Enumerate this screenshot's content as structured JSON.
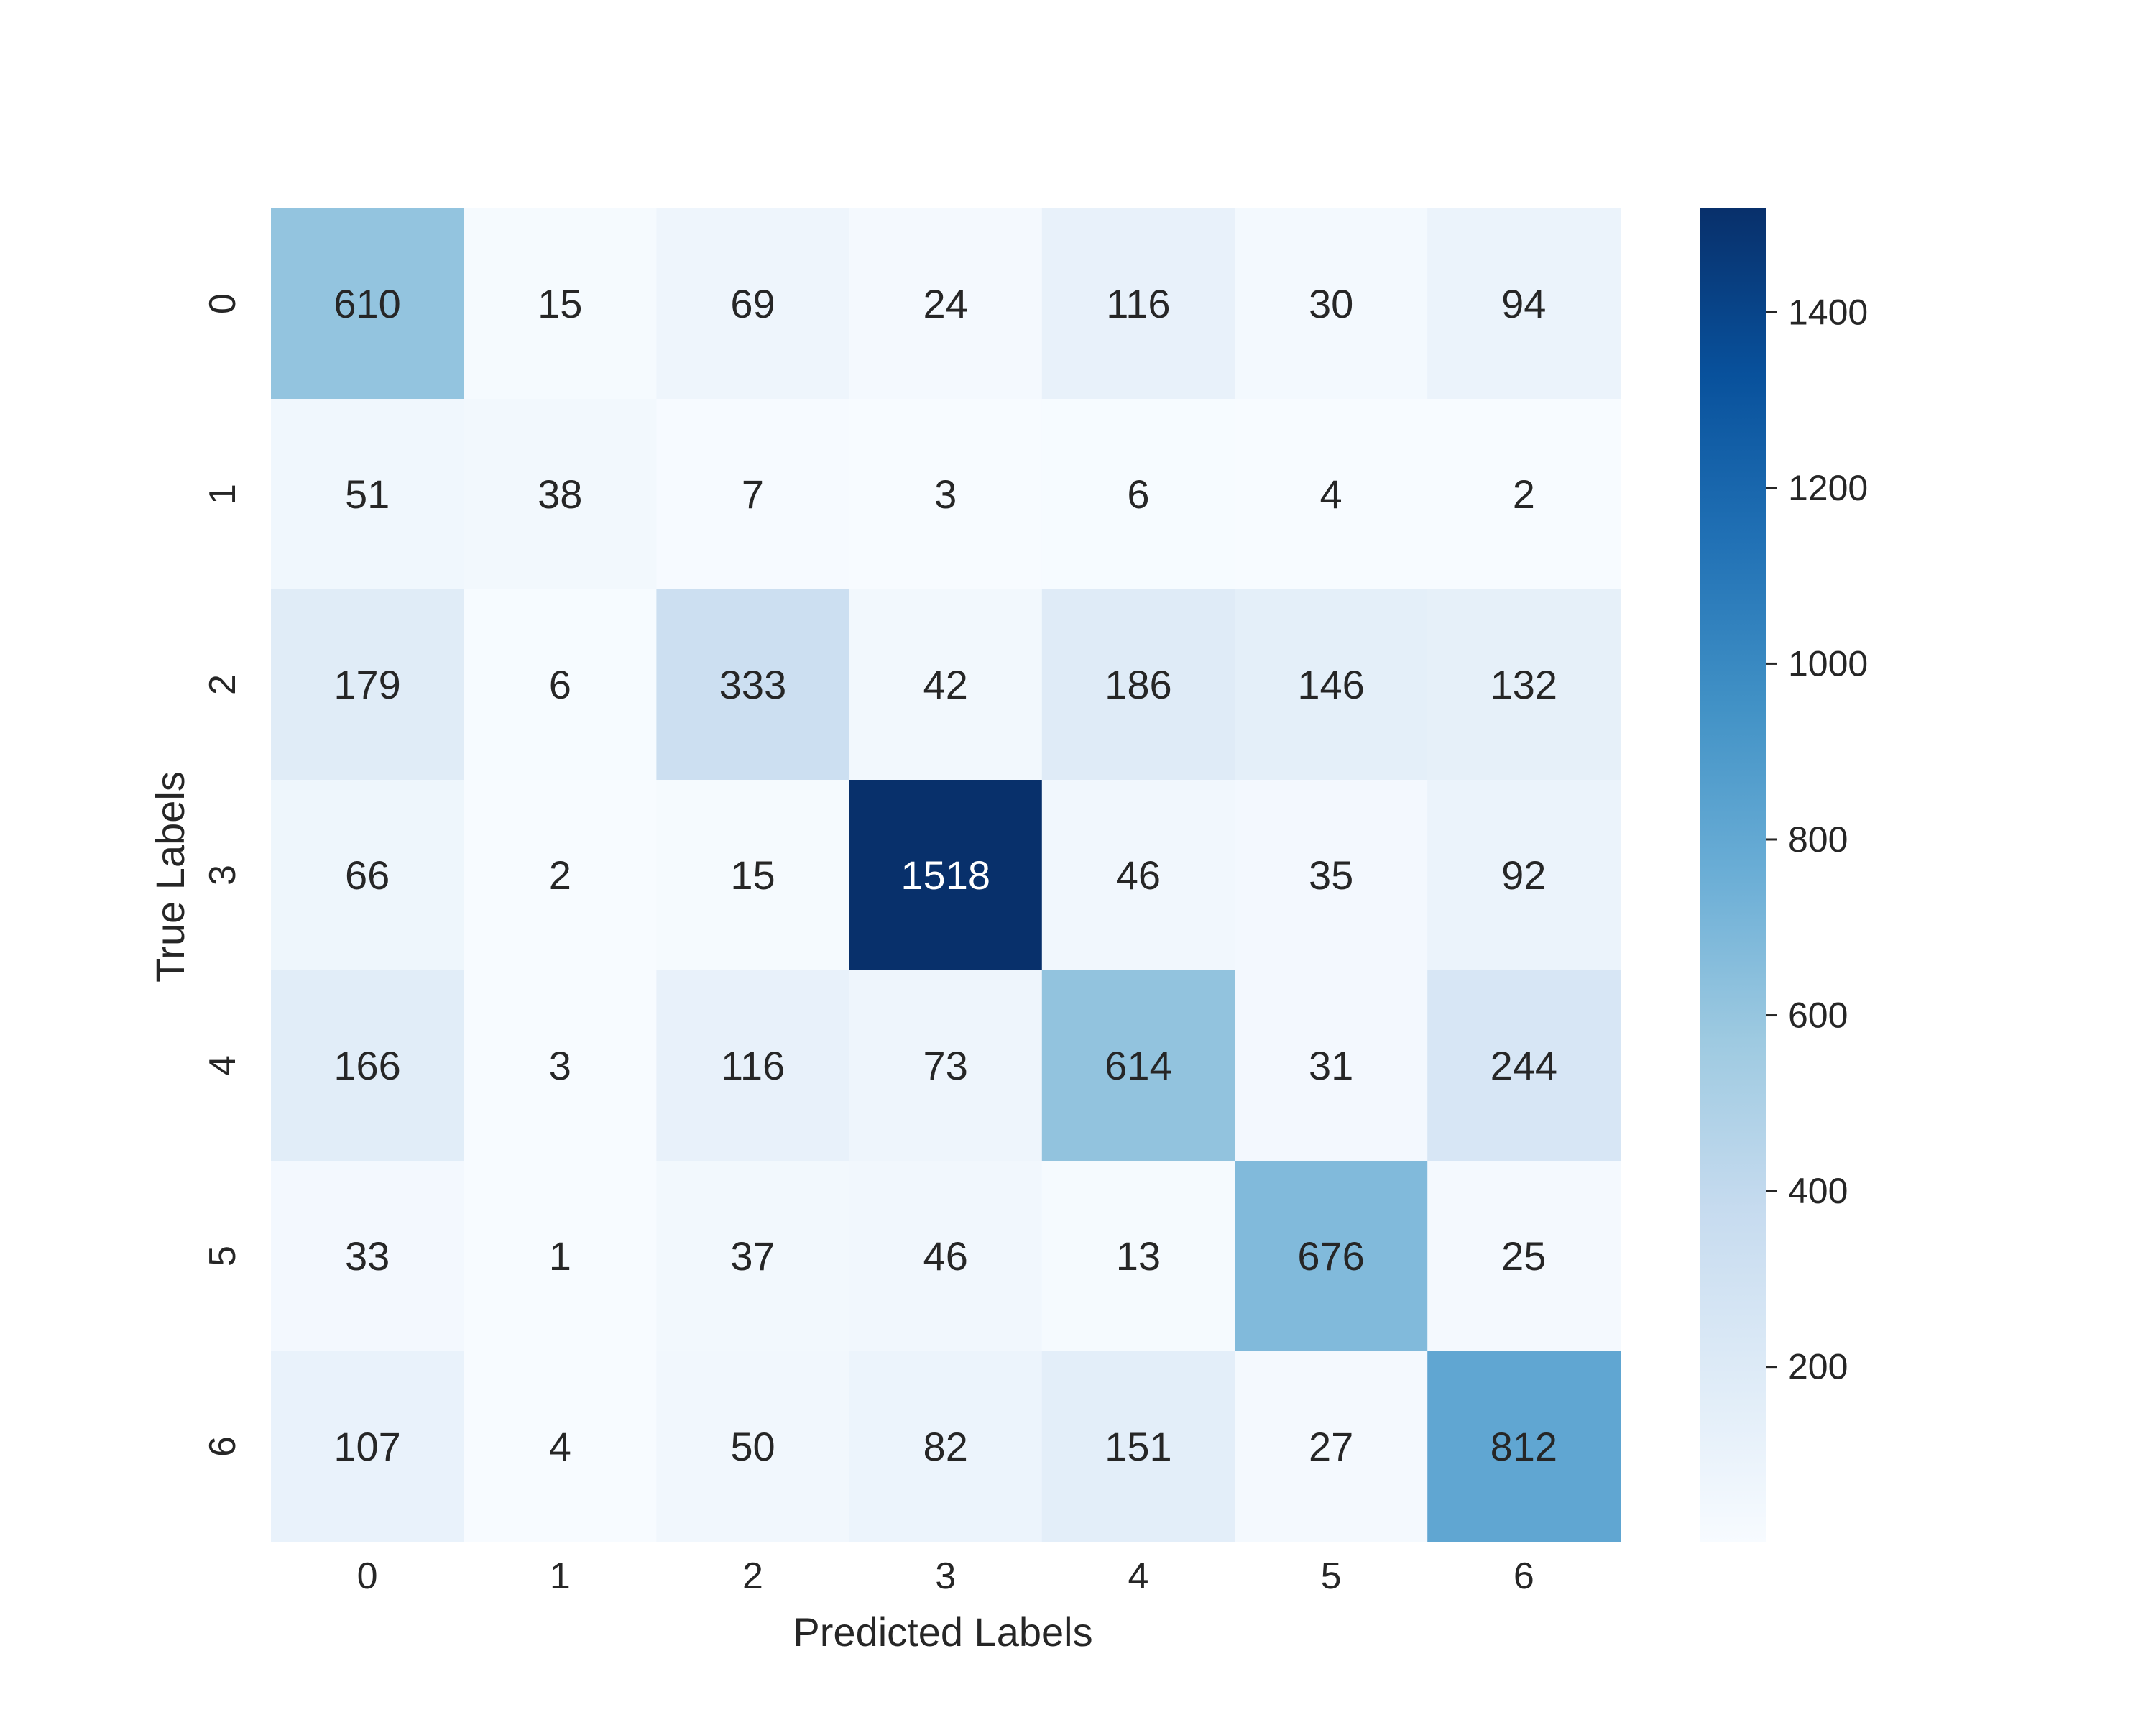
{
  "chart_data": {
    "type": "heatmap",
    "xlabel": "Predicted Labels",
    "ylabel": "True Labels",
    "x_categories": [
      "0",
      "1",
      "2",
      "3",
      "4",
      "5",
      "6"
    ],
    "y_categories": [
      "0",
      "1",
      "2",
      "3",
      "4",
      "5",
      "6"
    ],
    "values": [
      [
        610,
        15,
        69,
        24,
        116,
        30,
        94
      ],
      [
        51,
        38,
        7,
        3,
        6,
        4,
        2
      ],
      [
        179,
        6,
        333,
        42,
        186,
        146,
        132
      ],
      [
        66,
        2,
        15,
        1518,
        46,
        35,
        92
      ],
      [
        166,
        3,
        116,
        73,
        614,
        31,
        244
      ],
      [
        33,
        1,
        37,
        46,
        13,
        676,
        25
      ],
      [
        107,
        4,
        50,
        82,
        151,
        27,
        812
      ]
    ],
    "colormap": "Blues",
    "color_low": "#f7fbff",
    "color_high": "#08306b",
    "vmin": 1,
    "vmax": 1518,
    "colorbar": {
      "ticks": [
        200,
        400,
        600,
        800,
        1000,
        1200,
        1400
      ]
    }
  }
}
